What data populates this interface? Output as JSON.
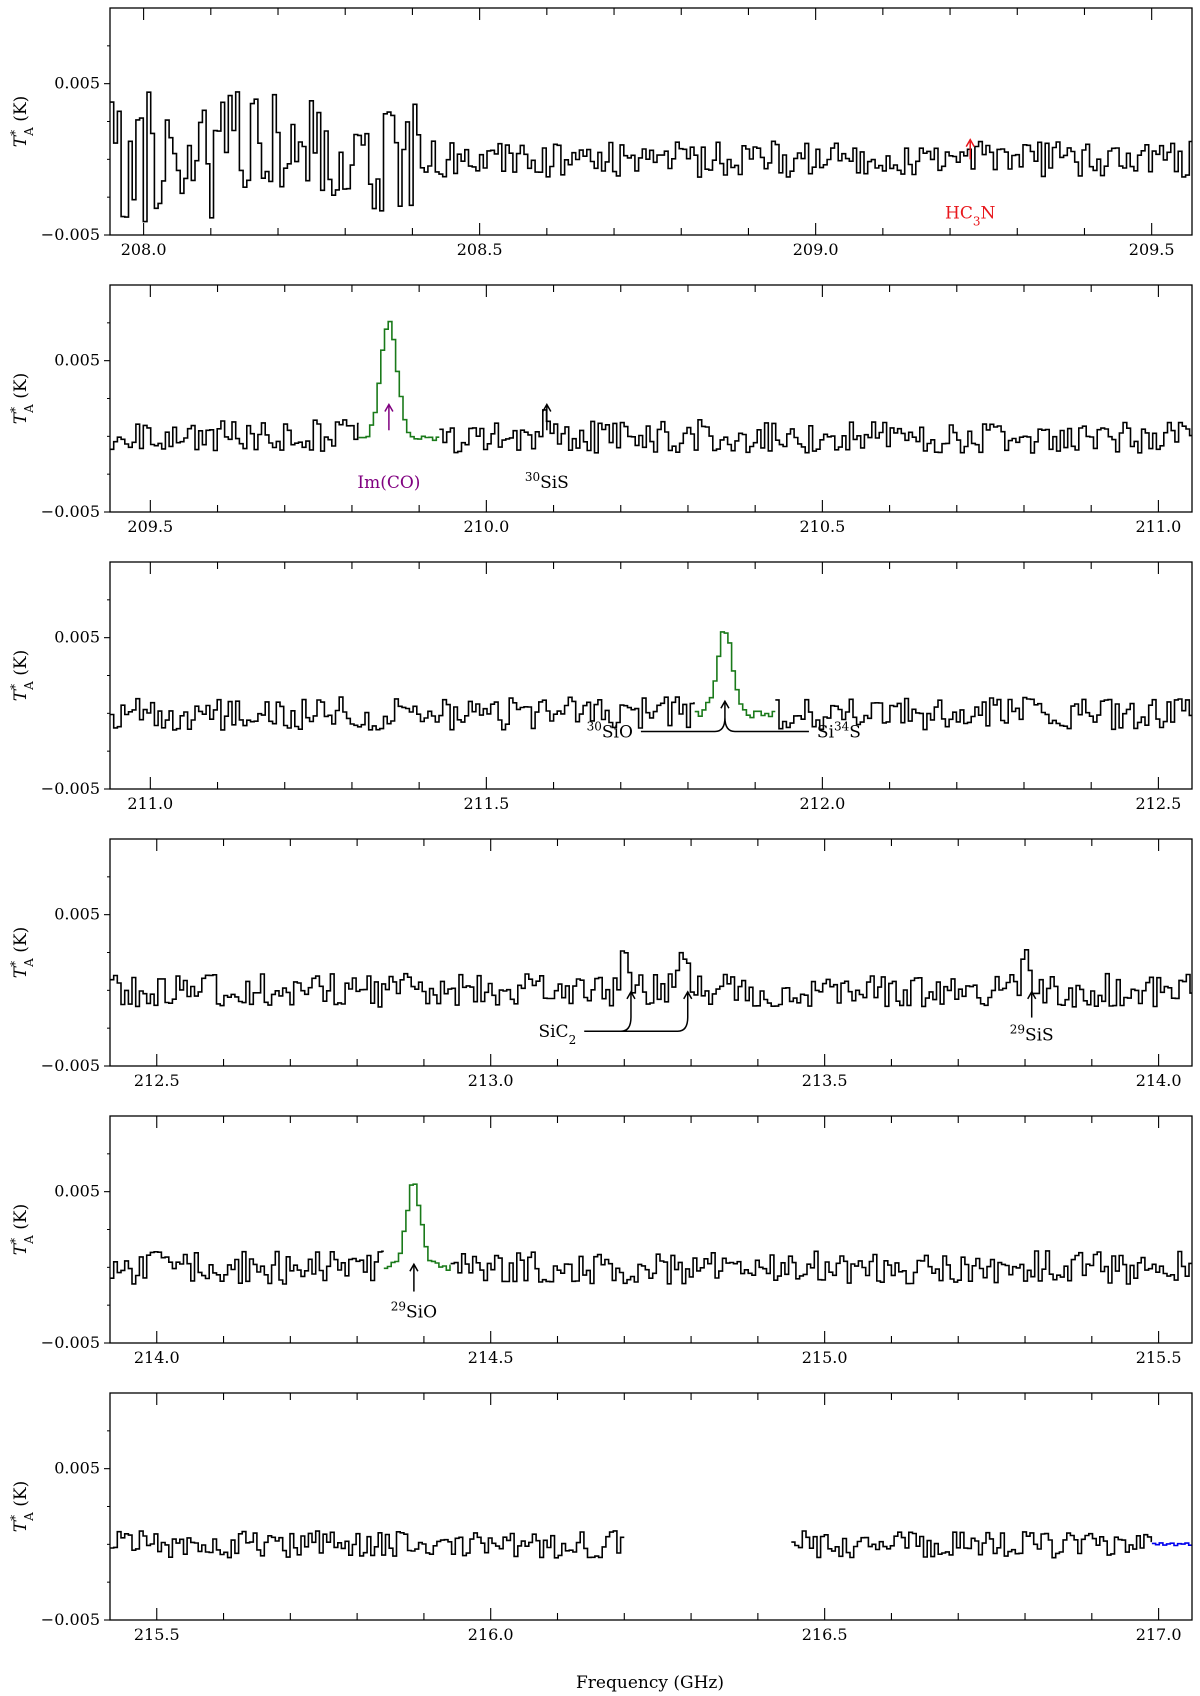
{
  "chart_data": {
    "type": "line",
    "xlabel": "Frequency (GHz)",
    "ylabel": "T*A (K)",
    "ylabel_parts": {
      "main": "T",
      "sup": "*",
      "sub": "A",
      "unit": " (K)"
    },
    "line_style": "steps",
    "colors": {
      "spectrum": "#000000",
      "highlight": "#1a7a1a",
      "red": "#e8161b",
      "purple": "#800080",
      "blue": "#0000ee"
    },
    "panels": [
      {
        "xlim": [
          207.95,
          209.56
        ],
        "ylim": [
          -0.005,
          0.01
        ],
        "xticks": [
          208.0,
          208.5,
          209.0,
          209.5
        ],
        "xtick_labels": [
          "208.0",
          "208.5",
          "209.0",
          "209.5"
        ],
        "yticks": [
          -0.005,
          0.005
        ],
        "ytick_labels": [
          "−0.005",
          "0.005"
        ],
        "segments": [
          {
            "style": "normal",
            "start": 207.95,
            "end": 209.56,
            "noise": 0.0012,
            "seed": 11,
            "noisy_region": {
              "end": 208.42,
              "amp": 0.0045
            }
          }
        ],
        "annotations": [
          {
            "type": "arrow",
            "x": 209.23,
            "y_tip": 0.0013,
            "y_tail": 0.0,
            "color": "red",
            "label": "HC",
            "label_sub": "3",
            "label_tail": "N",
            "label_y": -0.0039
          }
        ]
      },
      {
        "xlim": [
          209.44,
          211.05
        ],
        "ylim": [
          -0.005,
          0.01
        ],
        "xticks": [
          209.5,
          210.0,
          210.5,
          211.0
        ],
        "xtick_labels": [
          "209.5",
          "210.0",
          "210.5",
          "211.0"
        ],
        "yticks": [
          -0.005,
          0.005
        ],
        "ytick_labels": [
          "−0.005",
          "0.005"
        ],
        "segments": [
          {
            "style": "normal",
            "start": 209.44,
            "end": 209.81,
            "noise": 0.0011,
            "seed": 21
          },
          {
            "style": "highlight",
            "start": 209.81,
            "end": 209.93,
            "noise": 0.0003,
            "seed": 22,
            "peak": {
              "center": 209.855,
              "height": 0.0074,
              "width": 0.017
            }
          },
          {
            "style": "normal",
            "start": 209.93,
            "end": 211.05,
            "noise": 0.0011,
            "seed": 23,
            "peak": {
              "center": 210.09,
              "height": 0.0022,
              "width": 0.008
            }
          }
        ],
        "annotations": [
          {
            "type": "arrow",
            "x": 209.855,
            "y_tip": 0.0021,
            "y_tail": 0.0004,
            "color": "purple",
            "label": "Im(CO)",
            "label_y": -0.0034
          },
          {
            "type": "arrow",
            "x": 210.09,
            "y_tip": 0.0021,
            "y_tail": 0.0004,
            "color": "black",
            "label": "SiS",
            "label_sup": "30",
            "label_y": -0.0034
          }
        ]
      },
      {
        "xlim": [
          210.94,
          212.55
        ],
        "ylim": [
          -0.005,
          0.01
        ],
        "xticks": [
          211.0,
          211.5,
          212.0,
          212.5
        ],
        "xtick_labels": [
          "211.0",
          "211.5",
          "212.0",
          "212.5"
        ],
        "yticks": [
          -0.005,
          0.005
        ],
        "ytick_labels": [
          "−0.005",
          "0.005"
        ],
        "segments": [
          {
            "style": "normal",
            "start": 210.94,
            "end": 211.81,
            "noise": 0.0011,
            "seed": 31
          },
          {
            "style": "highlight",
            "start": 211.81,
            "end": 211.93,
            "noise": 0.0003,
            "seed": 32,
            "peak": {
              "center": 211.855,
              "height": 0.0056,
              "width": 0.016
            }
          },
          {
            "style": "normal",
            "start": 211.93,
            "end": 212.55,
            "noise": 0.0011,
            "seed": 33
          }
        ],
        "annotations": [
          {
            "type": "bracket",
            "x": 211.855,
            "y_tip": 0.0008,
            "y_base": -0.0012,
            "x_left": 211.73,
            "x_right": 211.98,
            "color": "black",
            "left_label": "SiO",
            "left_label_sup": "30",
            "right_label": "Si",
            "right_label_sup": "34",
            "right_label_tail": "S"
          }
        ]
      },
      {
        "xlim": [
          212.43,
          214.05
        ],
        "ylim": [
          -0.005,
          0.01
        ],
        "xticks": [
          212.5,
          213.0,
          213.5,
          214.0
        ],
        "xtick_labels": [
          "212.5",
          "213.0",
          "213.5",
          "214.0"
        ],
        "yticks": [
          -0.005,
          0.005
        ],
        "ytick_labels": [
          "−0.005",
          "0.005"
        ],
        "segments": [
          {
            "style": "normal",
            "start": 212.43,
            "end": 214.05,
            "noise": 0.0011,
            "seed": 41,
            "peaks": [
              {
                "center": 213.2,
                "height": 0.0022,
                "width": 0.008
              },
              {
                "center": 213.29,
                "height": 0.0022,
                "width": 0.008
              },
              {
                "center": 213.8,
                "height": 0.0022,
                "width": 0.008
              }
            ]
          }
        ],
        "annotations": [
          {
            "type": "double_hook",
            "x1": 213.21,
            "x2": 213.295,
            "y_tip": -0.0001,
            "y_base": -0.0027,
            "x_start": 213.14,
            "color": "black",
            "label": "SiC",
            "label_sub": "2"
          },
          {
            "type": "arrow",
            "x": 213.81,
            "y_tip": -0.0001,
            "y_tail": -0.0018,
            "color": "black",
            "label": "SiS",
            "label_sup": "29",
            "label_y": -0.0033
          }
        ]
      },
      {
        "xlim": [
          213.93,
          215.55
        ],
        "ylim": [
          -0.005,
          0.01
        ],
        "xticks": [
          214.0,
          214.5,
          215.0,
          215.5
        ],
        "xtick_labels": [
          "214.0",
          "214.5",
          "215.0",
          "215.5"
        ],
        "yticks": [
          -0.005,
          0.005
        ],
        "ytick_labels": [
          "−0.005",
          "0.005"
        ],
        "segments": [
          {
            "style": "normal",
            "start": 213.93,
            "end": 214.34,
            "noise": 0.0011,
            "seed": 51
          },
          {
            "style": "highlight",
            "start": 214.34,
            "end": 214.44,
            "noise": 0.0003,
            "seed": 52,
            "peak": {
              "center": 214.385,
              "height": 0.0055,
              "width": 0.015
            }
          },
          {
            "style": "normal",
            "start": 214.44,
            "end": 215.55,
            "noise": 0.0011,
            "seed": 53
          }
        ],
        "annotations": [
          {
            "type": "arrow",
            "x": 214.385,
            "y_tip": 0.0002,
            "y_tail": -0.0016,
            "color": "black",
            "label": "SiO",
            "label_sup": "29",
            "label_y": -0.0033
          }
        ]
      },
      {
        "xlim": [
          215.43,
          217.05
        ],
        "ylim": [
          -0.005,
          0.01
        ],
        "xticks": [
          215.5,
          216.0,
          216.5,
          217.0
        ],
        "xtick_labels": [
          "215.5",
          "216.0",
          "216.5",
          "217.0"
        ],
        "yticks": [
          -0.005,
          0.005
        ],
        "ytick_labels": [
          "−0.005",
          "0.005"
        ],
        "segments": [
          {
            "style": "normal",
            "start": 215.43,
            "end": 216.2,
            "noise": 0.0009,
            "seed": 61
          },
          {
            "style": "normal",
            "start": 216.45,
            "end": 216.99,
            "noise": 0.0009,
            "seed": 62
          },
          {
            "style": "blue",
            "start": 216.99,
            "end": 217.05,
            "noise": 0.0001,
            "seed": 63
          }
        ],
        "annotations": []
      }
    ]
  }
}
